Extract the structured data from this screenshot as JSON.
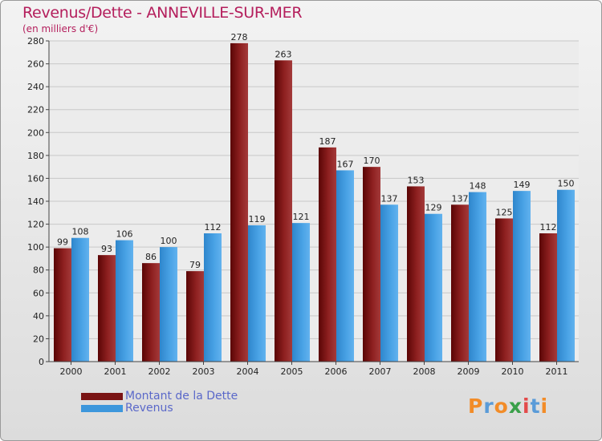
{
  "header": {
    "title": "Revenus/Dette - ANNEVILLE-SUR-MER",
    "subtitle": "(en milliers d'€)"
  },
  "chart_data": {
    "type": "bar",
    "title": "Revenus/Dette - ANNEVILLE-SUR-MER",
    "ylabel": "(en milliers d'€)",
    "xlabel": "",
    "categories": [
      "2000",
      "2001",
      "2002",
      "2003",
      "2004",
      "2005",
      "2006",
      "2007",
      "2008",
      "2009",
      "2010",
      "2011"
    ],
    "series": [
      {
        "name": "Montant de la Dette",
        "color": "#7a1414",
        "values": [
          99,
          93,
          86,
          79,
          278,
          263,
          187,
          170,
          153,
          137,
          125,
          112
        ]
      },
      {
        "name": "Revenus",
        "color": "#3d97dc",
        "values": [
          108,
          106,
          100,
          112,
          119,
          121,
          167,
          137,
          129,
          148,
          149,
          150
        ]
      }
    ],
    "ylim": [
      0,
      280
    ],
    "yticks": [
      0,
      20,
      40,
      60,
      80,
      100,
      120,
      140,
      160,
      180,
      200,
      220,
      240,
      260,
      280
    ],
    "grid": true,
    "legend": "bottom-left"
  },
  "legend": {
    "items": [
      {
        "label": "Montant de la Dette",
        "color": "#7a1414"
      },
      {
        "label": "Revenus",
        "color": "#3d97dc"
      }
    ]
  },
  "logo": {
    "text": "Proxiti",
    "letter_colors": [
      "#f28c28",
      "#5a9bd8",
      "#f28c28",
      "#3aa04a",
      "#e34a4a",
      "#5a9bd8",
      "#f28c28"
    ]
  }
}
